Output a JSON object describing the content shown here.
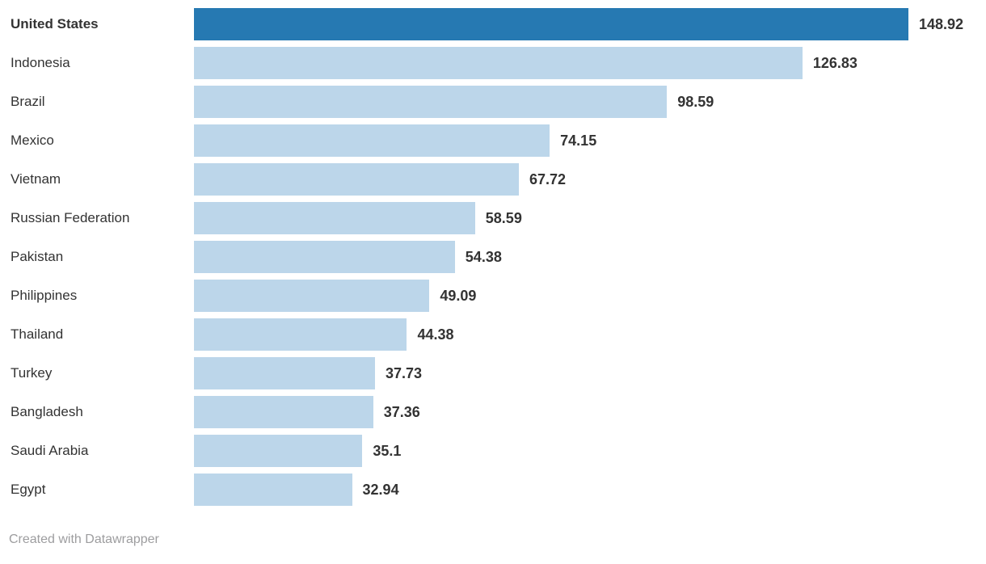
{
  "chart_data": {
    "type": "bar",
    "orientation": "horizontal",
    "title": "",
    "xlabel": "",
    "ylabel": "",
    "xlim": [
      0,
      148.92
    ],
    "grid": false,
    "legend": false,
    "categories": [
      "United States",
      "Indonesia",
      "Brazil",
      "Mexico",
      "Vietnam",
      "Russian Federation",
      "Pakistan",
      "Philippines",
      "Thailand",
      "Turkey",
      "Bangladesh",
      "Saudi Arabia",
      "Egypt"
    ],
    "values": [
      148.92,
      126.83,
      98.59,
      74.15,
      67.72,
      58.59,
      54.38,
      49.09,
      44.38,
      37.73,
      37.36,
      35.1,
      32.94
    ],
    "value_labels": [
      "148.92",
      "126.83",
      "98.59",
      "74.15",
      "67.72",
      "58.59",
      "54.38",
      "49.09",
      "44.38",
      "37.73",
      "37.36",
      "35.1",
      "32.94"
    ],
    "highlight_category": "United States",
    "colors": {
      "bar_highlight": "#2679b2",
      "bar_default": "#bcd6ea",
      "label_text": "#333333",
      "value_text": "#333333"
    }
  },
  "footer": {
    "credit": "Created with Datawrapper"
  }
}
